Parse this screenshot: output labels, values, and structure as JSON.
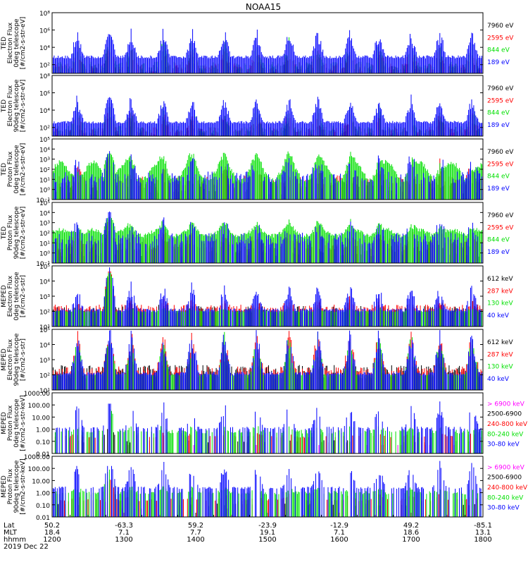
{
  "title": "NOAA15",
  "colors": {
    "black": "#000000",
    "red": "#ff0000",
    "green": "#00e000",
    "blue": "#0000ff",
    "magenta": "#ff00ff"
  },
  "chart_data": [
    {
      "type": "line",
      "ylabel": [
        "TED",
        "Electron Flux",
        "0deg telescope",
        "[#/cm2-s-str-eV]"
      ],
      "ylog": true,
      "yticks": [
        {
          "v": 2,
          "l": "10²"
        },
        {
          "v": 4,
          "l": "10⁴"
        },
        {
          "v": 6,
          "l": "10⁶"
        },
        {
          "v": 8,
          "l": "10⁸"
        }
      ],
      "ylim": [
        1.0,
        8.0
      ],
      "series": [
        {
          "name": "7960 eV",
          "color": "#000000",
          "base": 1.5,
          "noise": 0.55,
          "spike": 1.4,
          "sparse": 0.55,
          "pass": 1.2
        },
        {
          "name": "2595 eV",
          "color": "#ff0000",
          "base": 1.7,
          "noise": 0.5,
          "spike": 1.9,
          "sparse": 0.35,
          "pass": 1.7
        },
        {
          "name": "844 eV",
          "color": "#00e000",
          "base": 1.9,
          "noise": 0.45,
          "spike": 2.4,
          "sparse": 0.3,
          "pass": 2.0
        },
        {
          "name": "189 eV",
          "color": "#0000ff",
          "base": 2.9,
          "noise": 0.18,
          "spike": 2.7,
          "sparse": 0.0,
          "pass": 2.2
        }
      ]
    },
    {
      "type": "line",
      "ylabel": [
        "TED",
        "Electron Flux",
        "90deg telescope",
        "[#/cm2-s-str-eV]"
      ],
      "ylog": true,
      "yticks": [
        {
          "v": 2,
          "l": "10²"
        },
        {
          "v": 4,
          "l": "10⁴"
        },
        {
          "v": 6,
          "l": "10⁶"
        },
        {
          "v": 8,
          "l": "10⁸"
        }
      ],
      "ylim": [
        1.0,
        8.0
      ],
      "series": [
        {
          "name": "7960 eV",
          "color": "#000000",
          "base": 1.4,
          "noise": 0.5,
          "spike": 1.5,
          "sparse": 0.5,
          "pass": 1.4
        },
        {
          "name": "2595 eV",
          "color": "#ff0000",
          "base": 1.6,
          "noise": 0.45,
          "spike": 1.9,
          "sparse": 0.3,
          "pass": 1.9
        },
        {
          "name": "844 eV",
          "color": "#00e000",
          "base": 1.8,
          "noise": 0.4,
          "spike": 2.3,
          "sparse": 0.3,
          "pass": 2.2
        },
        {
          "name": "189 eV",
          "color": "#0000ff",
          "base": 2.6,
          "noise": 0.15,
          "spike": 2.6,
          "sparse": 0.0,
          "pass": 2.5
        }
      ]
    },
    {
      "type": "line",
      "ylabel": [
        "TED",
        "Proton Flux",
        "0deg telescope",
        "[#/cm2-s-str-eV]"
      ],
      "ylog": true,
      "yticks": [
        {
          "v": -1,
          "l": "10⁻¹"
        },
        {
          "v": 0,
          "l": "10⁰"
        },
        {
          "v": 1,
          "l": "10¹"
        },
        {
          "v": 2,
          "l": "10²"
        },
        {
          "v": 3,
          "l": "10³"
        },
        {
          "v": 4,
          "l": "10⁴"
        },
        {
          "v": 5,
          "l": "10⁵"
        }
      ],
      "ylim": [
        -1.0,
        5.0
      ],
      "series": [
        {
          "name": "7960 eV",
          "color": "#000000",
          "base": 0.3,
          "noise": 0.8,
          "spike": 1.2,
          "sparse": 0.6,
          "pass": 1.6
        },
        {
          "name": "2595 eV",
          "color": "#ff0000",
          "base": 0.8,
          "noise": 0.6,
          "spike": 1.4,
          "sparse": 0.4,
          "pass": 2.1
        },
        {
          "name": "844 eV",
          "color": "#00e000",
          "base": 1.8,
          "noise": 0.25,
          "spike": 1.0,
          "sparse": 0.0,
          "pass": 1.4,
          "wave": 0.9
        },
        {
          "name": "189 eV",
          "color": "#0000ff",
          "base": 1.2,
          "noise": 0.6,
          "spike": 1.8,
          "sparse": 0.45,
          "pass": 2.2
        }
      ]
    },
    {
      "type": "line",
      "ylabel": [
        "TED",
        "Proton Flux",
        "90deg telescope",
        "[#/cm2-s-str-eV]"
      ],
      "ylog": true,
      "yticks": [
        {
          "v": -1,
          "l": "10⁻¹"
        },
        {
          "v": 0,
          "l": "10⁰"
        },
        {
          "v": 1,
          "l": "10¹"
        },
        {
          "v": 2,
          "l": "10²"
        },
        {
          "v": 3,
          "l": "10³"
        },
        {
          "v": 4,
          "l": "10⁴"
        },
        {
          "v": 5,
          "l": "10⁵"
        }
      ],
      "ylim": [
        -1.0,
        5.0
      ],
      "series": [
        {
          "name": "7960 eV",
          "color": "#000000",
          "base": 0.4,
          "noise": 0.8,
          "spike": 1.1,
          "sparse": 0.5,
          "pass": 1.4
        },
        {
          "name": "2595 eV",
          "color": "#ff0000",
          "base": 0.9,
          "noise": 0.6,
          "spike": 1.2,
          "sparse": 0.35,
          "pass": 2.0
        },
        {
          "name": "844 eV",
          "color": "#00e000",
          "base": 2.0,
          "noise": 0.2,
          "spike": 0.8,
          "sparse": 0.0,
          "pass": 1.2,
          "wave": 0.3
        },
        {
          "name": "189 eV",
          "color": "#0000ff",
          "base": 1.4,
          "noise": 0.6,
          "spike": 1.6,
          "sparse": 0.4,
          "pass": 2.3
        }
      ]
    },
    {
      "type": "line",
      "ylabel": [
        "MEPED",
        "Electron Flux",
        "0deg telescope",
        "[#/cm2-s-str]"
      ],
      "ylog": true,
      "yticks": [
        {
          "v": 1,
          "l": "10¹"
        },
        {
          "v": 2,
          "l": "10²"
        },
        {
          "v": 3,
          "l": "10³"
        },
        {
          "v": 4,
          "l": "10⁴"
        },
        {
          "v": 5,
          "l": "10⁵"
        }
      ],
      "ylim": [
        1.0,
        5.0
      ],
      "series": [
        {
          "name": "612 keV",
          "color": "#000000",
          "base": 2.1,
          "noise": 0.25,
          "spike": 0.4,
          "sparse": 0.4,
          "pass": 2.0
        },
        {
          "name": "287 keV",
          "color": "#ff0000",
          "base": 2.2,
          "noise": 0.25,
          "spike": 0.5,
          "sparse": 0.2,
          "pass": 2.1
        },
        {
          "name": "130 keV",
          "color": "#00e000",
          "base": 2.0,
          "noise": 0.05,
          "spike": 0.2,
          "sparse": 0.0,
          "pass": 2.2
        },
        {
          "name": "40 keV",
          "color": "#0000ff",
          "base": 2.1,
          "noise": 0.1,
          "spike": 1.5,
          "sparse": 0.3,
          "pass": 2.4
        }
      ]
    },
    {
      "type": "line",
      "ylabel": [
        "MEPED",
        "Electron Flux",
        "90deg telescope",
        "[#/cm2-s-str]"
      ],
      "ylog": true,
      "yticks": [
        {
          "v": 1,
          "l": "10¹"
        },
        {
          "v": 2,
          "l": "10²"
        },
        {
          "v": 3,
          "l": "10³"
        },
        {
          "v": 4,
          "l": "10⁴"
        },
        {
          "v": 5,
          "l": "10⁵"
        }
      ],
      "ylim": [
        1.0,
        5.0
      ],
      "series": [
        {
          "name": "612 keV",
          "color": "#000000",
          "base": 2.2,
          "noise": 0.45,
          "spike": 1.0,
          "sparse": 0.2,
          "pass": 1.4
        },
        {
          "name": "287 keV",
          "color": "#ff0000",
          "base": 2.2,
          "noise": 0.35,
          "spike": 2.2,
          "sparse": 0.1,
          "pass": 1.6
        },
        {
          "name": "130 keV",
          "color": "#00e000",
          "base": 2.0,
          "noise": 0.05,
          "spike": 2.3,
          "sparse": 0.0,
          "pass": 1.7
        },
        {
          "name": "40 keV",
          "color": "#0000ff",
          "base": 2.1,
          "noise": 0.1,
          "spike": 2.6,
          "sparse": 0.2,
          "pass": 1.8
        }
      ]
    },
    {
      "type": "line",
      "ylabel": [
        "MEPED",
        "Proton Flux",
        "0deg telescope",
        "[#/cm2-s-str-keV]"
      ],
      "ylog": true,
      "yticks": [
        {
          "v": -2,
          "l": "0.01"
        },
        {
          "v": -1,
          "l": "0.10"
        },
        {
          "v": 0,
          "l": "1.00"
        },
        {
          "v": 1,
          "l": "10.00"
        },
        {
          "v": 2,
          "l": "100.00"
        },
        {
          "v": 3,
          "l": "1000.00"
        }
      ],
      "ylim": [
        -2.0,
        3.0
      ],
      "series": [
        {
          "name": "> 6900 keV",
          "color": "#ff00ff",
          "base": -1.3,
          "noise": 0.0,
          "spike": 0.0,
          "sparse": 0.97,
          "pass": 0.3
        },
        {
          "name": "2500-6900",
          "color": "#000000",
          "base": -1.0,
          "noise": 0.1,
          "spike": 0.0,
          "sparse": 0.9,
          "pass": 0.7
        },
        {
          "name": "240-800 keV",
          "color": "#ff0000",
          "base": -0.6,
          "noise": 0.1,
          "spike": 0.3,
          "sparse": 0.8,
          "pass": 1.3
        },
        {
          "name": "80-240 keV",
          "color": "#00e000",
          "base": -0.2,
          "noise": 0.15,
          "spike": 0.4,
          "sparse": 0.55,
          "pass": 1.5
        },
        {
          "name": "30-80 keV",
          "color": "#0000ff",
          "base": 0.1,
          "noise": 0.1,
          "spike": 1.9,
          "sparse": 0.6,
          "pass": 1.6
        }
      ]
    },
    {
      "type": "line",
      "ylabel": [
        "MEPED",
        "Proton Flux",
        "90deg telescope",
        "[#/cm2-s-str-keV]"
      ],
      "ylog": true,
      "yticks": [
        {
          "v": -2,
          "l": "0.01"
        },
        {
          "v": -1,
          "l": "0.10"
        },
        {
          "v": 0,
          "l": "1.00"
        },
        {
          "v": 1,
          "l": "10.00"
        },
        {
          "v": 2,
          "l": "100.00"
        },
        {
          "v": 3,
          "l": "1000.00"
        }
      ],
      "ylim": [
        -2.0,
        3.0
      ],
      "series": [
        {
          "name": "> 6900 keV",
          "color": "#ff00ff",
          "base": -1.3,
          "noise": 0.0,
          "spike": 0.0,
          "sparse": 0.97,
          "pass": 0.3
        },
        {
          "name": "2500-6900",
          "color": "#000000",
          "base": -1.0,
          "noise": 0.1,
          "spike": 0.0,
          "sparse": 0.9,
          "pass": 0.7
        },
        {
          "name": "240-800 keV",
          "color": "#ff0000",
          "base": -0.6,
          "noise": 0.1,
          "spike": 0.5,
          "sparse": 0.7,
          "pass": 1.3
        },
        {
          "name": "80-240 keV",
          "color": "#00e000",
          "base": 0.0,
          "noise": 0.15,
          "spike": 0.4,
          "sparse": 0.45,
          "pass": 1.5
        },
        {
          "name": "30-80 keV",
          "color": "#0000ff",
          "base": 0.4,
          "noise": 0.1,
          "spike": 1.8,
          "sparse": 0.5,
          "pass": 1.6
        }
      ]
    }
  ],
  "x_axis": {
    "rows": [
      {
        "label": "Lat",
        "values": [
          "50.2",
          "-63.3",
          "59.2",
          "-23.9",
          "-12.9",
          "49.2",
          "-85.1"
        ]
      },
      {
        "label": "MLT",
        "values": [
          "18.4",
          "7.1",
          "7.7",
          "19.1",
          "7.1",
          "18.6",
          "13.1"
        ]
      },
      {
        "label": "hhmm",
        "values": [
          "1200",
          "1300",
          "1400",
          "1500",
          "1600",
          "1700",
          "1800"
        ]
      }
    ],
    "date": "2019 Dec 22",
    "hours": [
      12,
      18
    ]
  }
}
